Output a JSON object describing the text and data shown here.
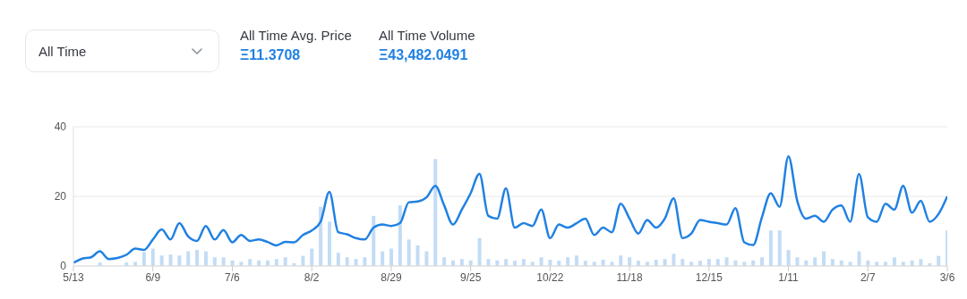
{
  "chart_data": {
    "type": "line",
    "annotations": [
      "All Time",
      "All Time Avg. Price",
      "Ξ11.3708",
      "All Time Volume",
      "Ξ43,482.0491"
    ],
    "categories": [
      "5/13",
      null,
      null,
      null,
      null,
      null,
      null,
      null,
      null,
      "6/9",
      null,
      null,
      null,
      null,
      null,
      null,
      null,
      null,
      "7/6",
      null,
      null,
      null,
      null,
      null,
      null,
      null,
      null,
      "8/2",
      null,
      null,
      null,
      null,
      null,
      null,
      null,
      null,
      "8/29",
      null,
      null,
      null,
      null,
      null,
      null,
      null,
      null,
      "9/25",
      null,
      null,
      null,
      null,
      null,
      null,
      null,
      null,
      "10/22",
      null,
      null,
      null,
      null,
      null,
      null,
      null,
      null,
      "11/18",
      null,
      null,
      null,
      null,
      null,
      null,
      null,
      null,
      "12/15",
      null,
      null,
      null,
      null,
      null,
      null,
      null,
      null,
      "1/11",
      null,
      null,
      null,
      null,
      null,
      null,
      null,
      null,
      "2/7",
      null,
      null,
      null,
      null,
      null,
      null,
      null,
      null,
      "3/6"
    ],
    "series": [
      {
        "type": "bar",
        "color": "#c3dcf5",
        "values": [
          null,
          null,
          null,
          1.0,
          null,
          null,
          1.0,
          1.2,
          4,
          5,
          3,
          3.3,
          3,
          4.2,
          4.6,
          4.2,
          2.5,
          2.5,
          1.6,
          1.2,
          2,
          1.6,
          1.6,
          2,
          2.5,
          0.8,
          2.9,
          5,
          17,
          12.7,
          3.8,
          2.5,
          2,
          2.5,
          14.4,
          4.2,
          5,
          17.4,
          7.6,
          5.9,
          4.2,
          30.7,
          2.5,
          1.6,
          2,
          1.6,
          8,
          2,
          1.6,
          2,
          1.5,
          2,
          1.2,
          2.5,
          1.8,
          1.5,
          2.5,
          3,
          1.5,
          1.2,
          1.8,
          1.2,
          3,
          2.5,
          1.5,
          1.2,
          1.8,
          2,
          3.5,
          2,
          1.2,
          1.5,
          2,
          2,
          2.5,
          1.6,
          1.2,
          1.6,
          2.5,
          10.2,
          10.2,
          4.6,
          2.5,
          1.6,
          2.5,
          4.2,
          2,
          1.6,
          1.2,
          4.2,
          1.6,
          1.2,
          1.2,
          2.5,
          1.2,
          1.6,
          2,
          0.8,
          2.9,
          10.2
        ]
      },
      {
        "color": "#2081e2",
        "values": [
          0.9,
          2.1,
          2.5,
          4.2,
          2.0,
          2.3,
          3.2,
          5,
          4.6,
          7.6,
          10.5,
          7.6,
          12.3,
          8.5,
          7.2,
          11.5,
          7.6,
          10.3,
          6.8,
          8.9,
          7.2,
          7.6,
          6.9,
          5.9,
          6.9,
          6.8,
          8.9,
          10.2,
          12.7,
          21.3,
          9.7,
          9.1,
          8.0,
          7.6,
          11.0,
          11.9,
          11.5,
          12.3,
          18.3,
          18.5,
          19.7,
          23.0,
          17.4,
          11.9,
          16.2,
          20.9,
          26.5,
          14.4,
          13.6,
          22.3,
          11.0,
          12.3,
          11.5,
          16.2,
          8.0,
          11.9,
          11.0,
          12.3,
          13.6,
          8.9,
          11.0,
          9.7,
          17.9,
          13.6,
          9.3,
          13.2,
          11.0,
          13.6,
          19.4,
          8.0,
          9.3,
          13.2,
          12.7,
          12.3,
          11.9,
          16.6,
          6.8,
          6.0,
          14.0,
          20.9,
          17.0,
          31.5,
          18.7,
          13.6,
          14.4,
          12.7,
          16.2,
          17.4,
          12.7,
          26.4,
          14.0,
          12.7,
          17.9,
          16.2,
          23.0,
          15.3,
          18.7,
          12.7,
          14.9,
          20.0
        ]
      }
    ],
    "ylim": [
      0,
      40
    ],
    "yticks": [
      0,
      20,
      40
    ],
    "grid": "y",
    "legend": false,
    "marker": "none",
    "line_style": "solid"
  }
}
